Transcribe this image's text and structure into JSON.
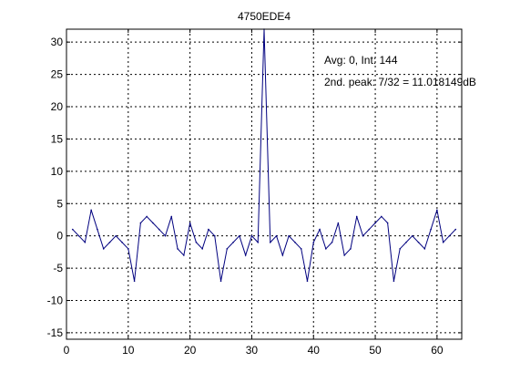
{
  "chart_data": {
    "type": "line",
    "title": "4750EDE4",
    "xlabel": "",
    "ylabel": "",
    "xlim": [
      0,
      64
    ],
    "ylim": [
      -16,
      32
    ],
    "xticks": [
      0,
      10,
      20,
      30,
      40,
      50,
      60
    ],
    "yticks": [
      -15,
      -10,
      -5,
      0,
      5,
      10,
      15,
      20,
      25,
      30
    ],
    "grid": true,
    "annotations": [
      "Avg: 0, Int: 144",
      "2nd. peak: 7/32 = 11.018149dB"
    ],
    "series": [
      {
        "color": "#00007f",
        "x": [
          1,
          2,
          3,
          4,
          5,
          6,
          7,
          8,
          9,
          10,
          11,
          12,
          13,
          14,
          15,
          16,
          17,
          18,
          19,
          20,
          21,
          22,
          23,
          24,
          25,
          26,
          27,
          28,
          29,
          30,
          31,
          32,
          33,
          34,
          35,
          36,
          37,
          38,
          39,
          40,
          41,
          42,
          43,
          44,
          45,
          46,
          47,
          48,
          49,
          50,
          51,
          52,
          53,
          54,
          55,
          56,
          57,
          58,
          59,
          60,
          61,
          62,
          63
        ],
        "values": [
          1,
          0,
          -1,
          4,
          1,
          -2,
          -1,
          0,
          -1,
          -2,
          -7,
          2,
          3,
          2,
          1,
          0,
          3,
          -2,
          -3,
          2,
          -1,
          -2,
          1,
          0,
          -7,
          -2,
          -1,
          0,
          -3,
          0,
          -1,
          32,
          -1,
          0,
          -3,
          0,
          -1,
          -2,
          -7,
          -1,
          1,
          -2,
          -1,
          2,
          -3,
          -2,
          3,
          0,
          1,
          2,
          3,
          2,
          -7,
          -2,
          -1,
          0,
          -1,
          -2,
          1,
          4,
          -1,
          0,
          1
        ]
      }
    ]
  }
}
